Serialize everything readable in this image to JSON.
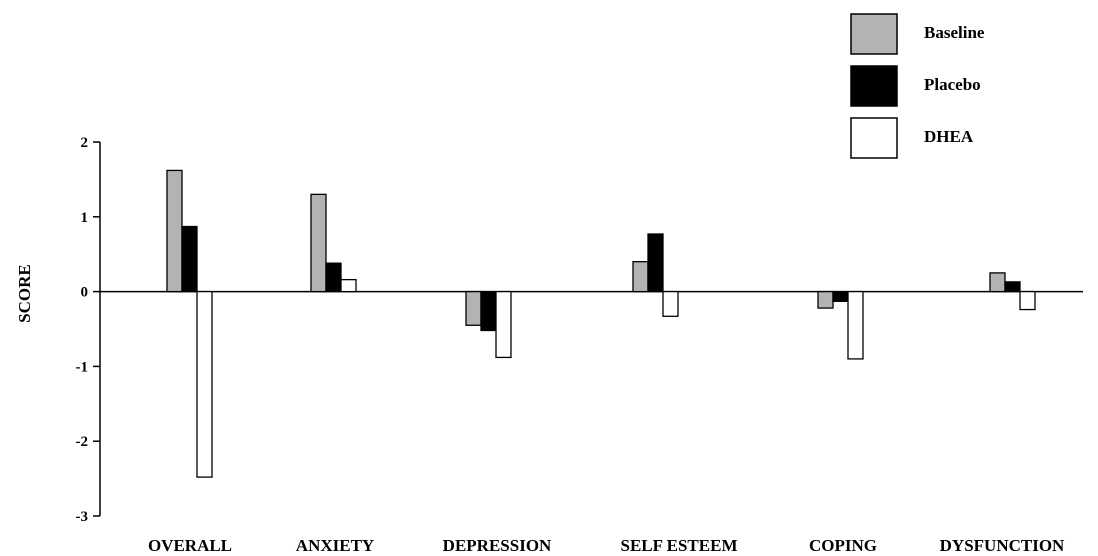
{
  "chart_data": {
    "type": "bar",
    "title": "",
    "xlabel": "",
    "ylabel": "SCORE",
    "ylim": [
      -3,
      2
    ],
    "yticks": [
      2,
      1,
      0,
      -1,
      -2,
      -3
    ],
    "grid": false,
    "legend_position": "top-right",
    "categories": [
      "OVERALL",
      "ANXIETY",
      "DEPRESSION",
      "SELF ESTEEM",
      "COPING",
      "DYSFUNCTION"
    ],
    "series": [
      {
        "name": "Baseline",
        "color": "#b3b3b3",
        "values": [
          1.62,
          1.3,
          -0.45,
          0.4,
          -0.22,
          0.25
        ]
      },
      {
        "name": "Placebo",
        "color": "#000000",
        "values": [
          0.87,
          0.38,
          -0.52,
          0.77,
          -0.13,
          0.13
        ]
      },
      {
        "name": "DHEA",
        "color": "#ffffff",
        "values": [
          -2.48,
          0.16,
          -0.88,
          -0.33,
          -0.9,
          -0.24
        ]
      }
    ]
  }
}
